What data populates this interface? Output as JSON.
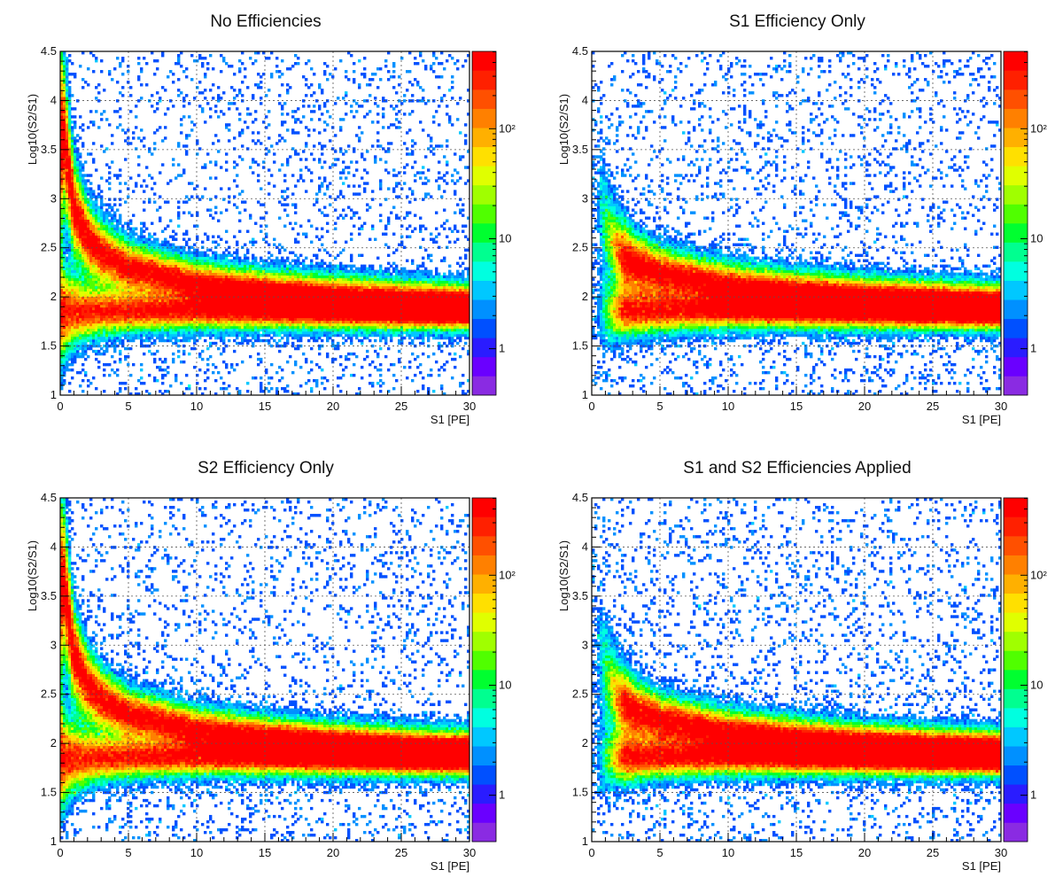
{
  "chart_data": [
    {
      "type": "heatmap",
      "title": "No Efficiencies",
      "xlabel": "S1 [PE]",
      "ylabel": "Log10(S2/S1)",
      "xlim": [
        0,
        30
      ],
      "ylim": [
        1,
        4.5
      ],
      "x_ticks": [
        "0",
        "5",
        "10",
        "15",
        "20",
        "25",
        "30"
      ],
      "y_ticks": [
        "1",
        "1.5",
        "2",
        "2.5",
        "3",
        "3.5",
        "4",
        "4.5"
      ],
      "grid": true,
      "z_scale": "log",
      "z_ticks": [
        "1",
        "10",
        "10²"
      ],
      "bands": [
        {
          "name_hint": "upper",
          "points": [
            [
              0.3,
              3.6
            ],
            [
              1,
              2.9
            ],
            [
              2,
              2.6
            ],
            [
              3,
              2.45
            ],
            [
              5,
              2.3
            ],
            [
              10,
              2.15
            ],
            [
              15,
              2.08
            ],
            [
              20,
              2.03
            ],
            [
              25,
              1.99
            ],
            [
              30,
              1.96
            ]
          ],
          "peak_log": 2.4
        },
        {
          "name_hint": "lower",
          "points": [
            [
              0.3,
              1.85
            ],
            [
              5,
              1.85
            ],
            [
              10,
              1.85
            ],
            [
              15,
              1.84
            ],
            [
              20,
              1.83
            ],
            [
              25,
              1.82
            ],
            [
              30,
              1.82
            ]
          ],
          "peak_log": 2.2
        }
      ]
    },
    {
      "type": "heatmap",
      "title": "S1 Efficiency Only",
      "xlabel": "S1 [PE]",
      "ylabel": "Log10(S2/S1)",
      "xlim": [
        0,
        30
      ],
      "ylim": [
        1,
        4.5
      ],
      "x_ticks": [
        "0",
        "5",
        "10",
        "15",
        "20",
        "25",
        "30"
      ],
      "y_ticks": [
        "1",
        "1.5",
        "2",
        "2.5",
        "3",
        "3.5",
        "4",
        "4.5"
      ],
      "grid": true,
      "z_scale": "log",
      "z_ticks": [
        "1",
        "10",
        "10²"
      ],
      "bands": [
        {
          "name_hint": "upper",
          "points": [
            [
              0.5,
              3.0
            ],
            [
              1,
              2.7
            ],
            [
              2,
              2.45
            ],
            [
              3,
              2.35
            ],
            [
              5,
              2.25
            ],
            [
              10,
              2.13
            ],
            [
              15,
              2.07
            ],
            [
              20,
              2.02
            ],
            [
              25,
              1.99
            ],
            [
              30,
              1.96
            ]
          ],
          "peak_log": 2.4
        },
        {
          "name_hint": "lower",
          "points": [
            [
              0.5,
              1.85
            ],
            [
              5,
              1.85
            ],
            [
              10,
              1.85
            ],
            [
              15,
              1.84
            ],
            [
              20,
              1.83
            ],
            [
              25,
              1.82
            ],
            [
              30,
              1.82
            ]
          ],
          "peak_log": 2.2
        }
      ]
    },
    {
      "type": "heatmap",
      "title": "S2 Efficiency Only",
      "xlabel": "S1 [PE]",
      "ylabel": "Log10(S2/S1)",
      "xlim": [
        0,
        30
      ],
      "ylim": [
        1,
        4.5
      ],
      "x_ticks": [
        "0",
        "5",
        "10",
        "15",
        "20",
        "25",
        "30"
      ],
      "y_ticks": [
        "1",
        "1.5",
        "2",
        "2.5",
        "3",
        "3.5",
        "4",
        "4.5"
      ],
      "grid": true,
      "z_scale": "log",
      "z_ticks": [
        "1",
        "10",
        "10²"
      ],
      "bands": [
        {
          "name_hint": "upper",
          "points": [
            [
              0.3,
              3.6
            ],
            [
              1,
              2.9
            ],
            [
              2,
              2.6
            ],
            [
              3,
              2.45
            ],
            [
              5,
              2.3
            ],
            [
              10,
              2.15
            ],
            [
              15,
              2.08
            ],
            [
              20,
              2.03
            ],
            [
              25,
              1.99
            ],
            [
              30,
              1.96
            ]
          ],
          "peak_log": 2.4
        },
        {
          "name_hint": "lower",
          "points": [
            [
              0.3,
              1.85
            ],
            [
              5,
              1.85
            ],
            [
              10,
              1.85
            ],
            [
              15,
              1.84
            ],
            [
              20,
              1.83
            ],
            [
              25,
              1.82
            ],
            [
              30,
              1.82
            ]
          ],
          "peak_log": 2.2
        }
      ]
    },
    {
      "type": "heatmap",
      "title": "S1 and S2 Efficiencies Applied",
      "xlabel": "S1 [PE]",
      "ylabel": "Log10(S2/S1)",
      "xlim": [
        0,
        30
      ],
      "ylim": [
        1,
        4.5
      ],
      "x_ticks": [
        "0",
        "5",
        "10",
        "15",
        "20",
        "25",
        "30"
      ],
      "y_ticks": [
        "1",
        "1.5",
        "2",
        "2.5",
        "3",
        "3.5",
        "4",
        "4.5"
      ],
      "grid": true,
      "z_scale": "log",
      "z_ticks": [
        "1",
        "10",
        "10²"
      ],
      "bands": [
        {
          "name_hint": "upper",
          "points": [
            [
              0.5,
              3.0
            ],
            [
              1,
              2.7
            ],
            [
              2,
              2.45
            ],
            [
              3,
              2.35
            ],
            [
              5,
              2.25
            ],
            [
              10,
              2.13
            ],
            [
              15,
              2.07
            ],
            [
              20,
              2.02
            ],
            [
              25,
              1.99
            ],
            [
              30,
              1.96
            ]
          ],
          "peak_log": 2.4
        },
        {
          "name_hint": "lower",
          "points": [
            [
              0.5,
              1.85
            ],
            [
              5,
              1.85
            ],
            [
              10,
              1.85
            ],
            [
              15,
              1.84
            ],
            [
              20,
              1.83
            ],
            [
              25,
              1.82
            ],
            [
              30,
              1.82
            ]
          ],
          "peak_log": 2.2
        }
      ]
    }
  ],
  "palette": [
    "#8a2be2",
    "#6a00ff",
    "#2a1cff",
    "#0050ff",
    "#0090ff",
    "#00c8ff",
    "#00ffe0",
    "#00ff90",
    "#00ff30",
    "#50ff00",
    "#a0ff00",
    "#e0ff00",
    "#ffe000",
    "#ffb000",
    "#ff8000",
    "#ff5000",
    "#ff2000",
    "#ff0000"
  ]
}
